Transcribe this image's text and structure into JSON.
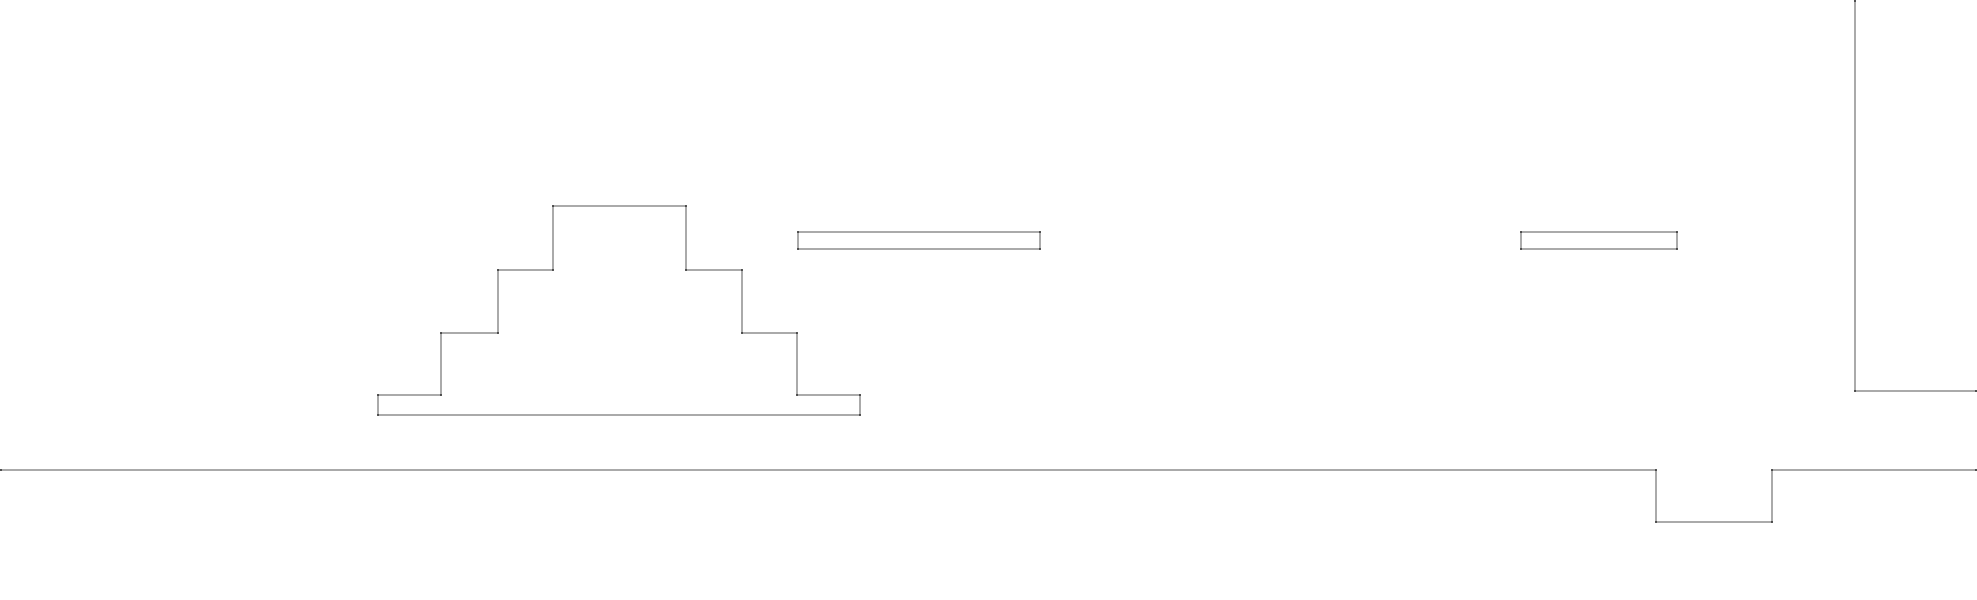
{
  "scene": {
    "type": "platformer-level-wireframe",
    "background_color": "#ffffff",
    "line_color": "#555555",
    "vertex_color": "#222222",
    "shapes": [
      {
        "name": "stepped-pyramid-platform"
      },
      {
        "name": "floating-platform-left"
      },
      {
        "name": "floating-platform-right"
      },
      {
        "name": "ground-line-with-pit"
      },
      {
        "name": "right-wall-ledge"
      }
    ]
  }
}
